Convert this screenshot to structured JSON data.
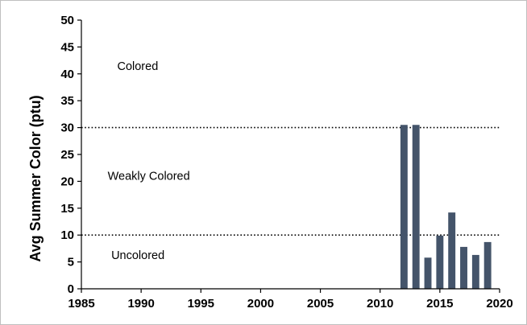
{
  "chart_data": {
    "type": "bar",
    "title": "",
    "xlabel": "",
    "ylabel": "Avg Summer Color (ptu)",
    "xlim": [
      1985,
      2020
    ],
    "ylim": [
      0,
      50
    ],
    "xticks": [
      1985,
      1990,
      1995,
      2000,
      2005,
      2010,
      2015,
      2020
    ],
    "yticks": [
      0,
      5,
      10,
      15,
      20,
      25,
      30,
      35,
      40,
      45,
      50
    ],
    "grid": false,
    "bar_color": "#44546a",
    "x": [
      2012,
      2013,
      2014,
      2015,
      2016,
      2017,
      2018,
      2019
    ],
    "values": [
      30.5,
      30.5,
      5.8,
      9.9,
      14.2,
      7.8,
      6.3,
      8.7
    ],
    "reference_lines": [
      {
        "y": 30,
        "style": "dotted"
      },
      {
        "y": 10,
        "style": "dotted"
      }
    ],
    "annotations": [
      {
        "text": "Colored",
        "x": 1988,
        "y": 41.5
      },
      {
        "text": "Weakly Colored",
        "x": 1987.2,
        "y": 21
      },
      {
        "text": "Uncolored",
        "x": 1987.5,
        "y": 6.3
      }
    ]
  }
}
